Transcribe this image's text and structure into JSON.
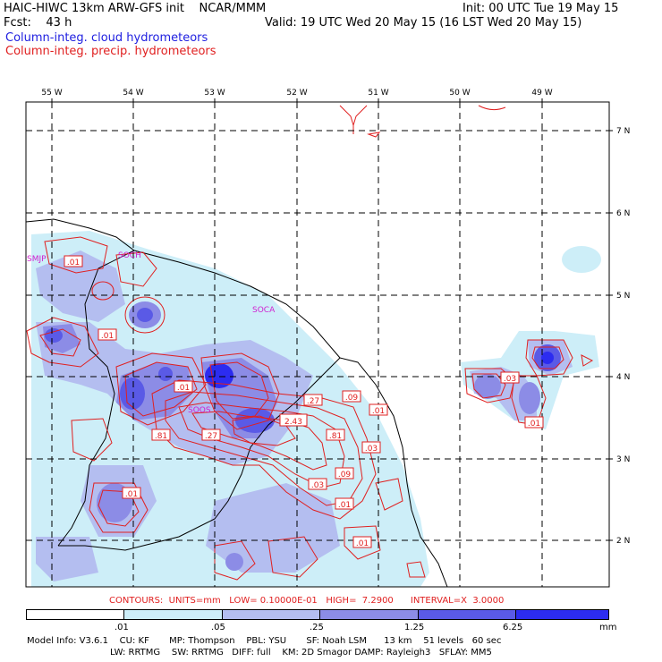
{
  "header": {
    "title": "HAIC-HIWC 13km ARW-GFS init    NCAR/MMM",
    "init": "Init: 00 UTC Tue 19 May 15",
    "fcst": "Fcst:    43 h",
    "valid": "Valid: 19 UTC Wed 20 May 15 (16 LST Wed 20 May 15)",
    "legend_cloud": "Column-integ. cloud hydrometeors",
    "legend_precip": "Column-integ. precip. hydrometeors"
  },
  "map": {
    "lon_labels": [
      "55 W",
      "54 W",
      "53 W",
      "52 W",
      "51 W",
      "50 W",
      "49 W"
    ],
    "lat_labels": [
      "7 N",
      "6 N",
      "5 N",
      "4 N",
      "3 N",
      "2 N"
    ],
    "stations": [
      "SMJP",
      "SOCH",
      "SOCA",
      "SOOS"
    ],
    "contour_labels": [
      ".01",
      ".01",
      ".01",
      ".27",
      ".09",
      ".01",
      ".81",
      ".27",
      "2.43",
      ".81",
      ".03",
      ".09",
      ".03",
      ".01",
      ".01",
      ".01",
      ".03",
      ".01"
    ]
  },
  "contours_info": "CONTOURS:  UNITS=mm   LOW= 0.10000E-01   HIGH=  7.2900      INTERVAL=X  3.0000",
  "colorbar": {
    "ticks": [
      ".01",
      ".05",
      ".25",
      "1.25",
      "6.25"
    ],
    "unit": "mm",
    "colors": [
      "#ffffff",
      "#cdeef8",
      "#b4bef0",
      "#8c8ce6",
      "#5a5ae6",
      "#2c2cf0"
    ]
  },
  "footer": {
    "line1": "Model Info: V3.6.1    CU: KF       MP: Thompson    PBL: YSU       SF: Noah LSM      13 km    51 levels   60 sec",
    "line2": "LW: RRTMG    SW: RRTMG   DIFF: full    KM: 2D Smagor DAMP: Rayleigh3   SFLAY: MM5"
  }
}
